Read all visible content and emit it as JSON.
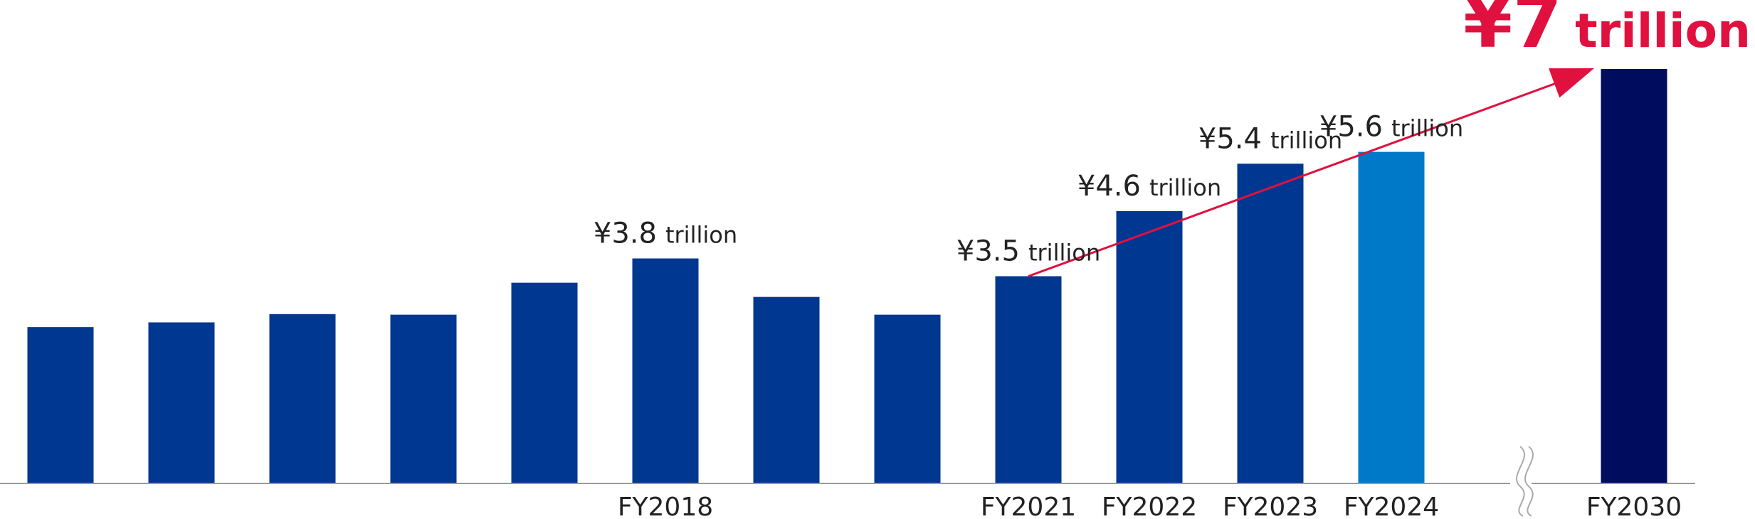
{
  "chart_data": {
    "type": "bar",
    "categories": [
      "",
      "",
      "",
      "",
      "",
      "FY2018",
      "",
      "",
      "FY2021",
      "FY2022",
      "FY2023",
      "FY2024",
      "FY2030"
    ],
    "values": [
      2.64,
      2.72,
      2.86,
      2.85,
      3.39,
      3.8,
      3.15,
      2.85,
      3.5,
      4.6,
      5.4,
      5.6,
      7.0
    ],
    "value_labels": [
      {
        "index": 5,
        "amount": "¥3.8",
        "unit": "trillion"
      },
      {
        "index": 8,
        "amount": "¥3.5",
        "unit": "trillion"
      },
      {
        "index": 9,
        "amount": "¥4.6",
        "unit": "trillion"
      },
      {
        "index": 10,
        "amount": "¥5.4",
        "unit": "trillion"
      },
      {
        "index": 11,
        "amount": "¥5.6",
        "unit": "trillion"
      }
    ],
    "target": {
      "index": 12,
      "amount": "¥7",
      "unit": "trillion"
    },
    "axis_break_after": 11,
    "trend_arrow": {
      "from_index": 8,
      "to_index": 12
    },
    "ylim": [
      0,
      7.0
    ],
    "title": "",
    "xlabel": "",
    "ylabel": "",
    "grid": false,
    "legend": "none"
  },
  "colors": {
    "bar": "#003790",
    "bar_forecast": "#007ac8",
    "bar_target": "#000d5e",
    "accent": "#e0103f",
    "axis": "#999999",
    "break_mark": "#aaaaaa",
    "text": "#222222"
  }
}
